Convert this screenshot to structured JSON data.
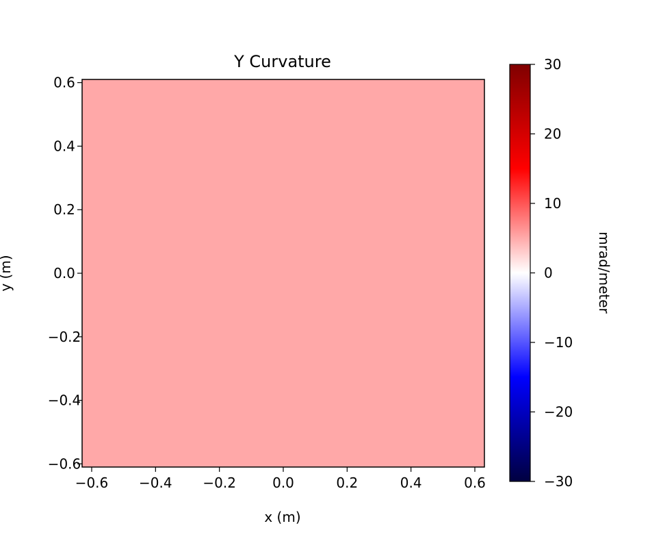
{
  "chart_data": {
    "type": "heatmap",
    "title": "Y Curvature",
    "xlabel": "x (m)",
    "ylabel": "y (m)",
    "xlim": [
      -0.63,
      0.63
    ],
    "ylim": [
      -0.61,
      0.61
    ],
    "xticks": [
      -0.6,
      -0.4,
      -0.2,
      0.0,
      0.2,
      0.4,
      0.6
    ],
    "xtick_labels": [
      "−0.6",
      "−0.4",
      "−0.2",
      "0.0",
      "0.2",
      "0.4",
      "0.6"
    ],
    "yticks": [
      -0.6,
      -0.4,
      -0.2,
      0.0,
      0.2,
      0.4,
      0.6
    ],
    "ytick_labels": [
      "−0.6",
      "−0.4",
      "−0.2",
      "0.0",
      "0.2",
      "0.4",
      "0.6"
    ],
    "field_value": 6.5,
    "fill_color": "#ffa8a8",
    "colorbar": {
      "label": "mrad/meter",
      "colormap": "seismic",
      "range": [
        -30,
        30
      ],
      "ticks": [
        30,
        20,
        10,
        0,
        -10,
        -20,
        -30
      ],
      "tick_labels": [
        "30",
        "20",
        "10",
        "0",
        "−10",
        "−20",
        "−30"
      ],
      "stops": [
        "#000040",
        "#0000ff",
        "#ffffff",
        "#ff0000",
        "#800000"
      ]
    },
    "grid": false
  }
}
